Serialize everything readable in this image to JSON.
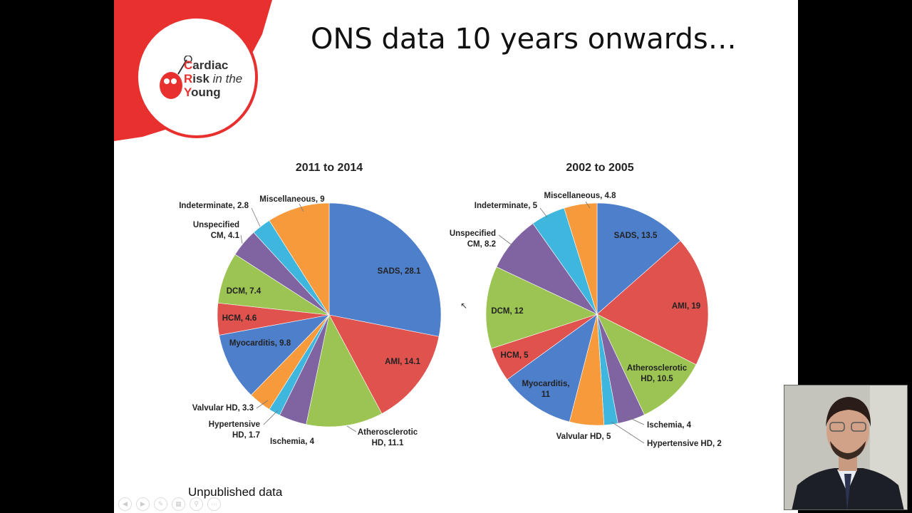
{
  "slide": {
    "title": "ONS data 10 years onwards…",
    "footnote": "Unpublished data",
    "logo": {
      "line1_cap": "C",
      "line1_rest": "ardiac",
      "line2_cap": "R",
      "line2_bold": "isk",
      "line2_it": " in the",
      "line3_cap": "Y",
      "line3_rest": "oung"
    }
  },
  "colors": {
    "blue": "#4e7fcb",
    "red": "#e0524d",
    "green": "#9bc452",
    "purple": "#8064a2",
    "cyan": "#3fb6dd",
    "orange": "#f79a3b",
    "logo_red": "#e8312f"
  },
  "toolbar": {
    "icons": [
      "prev-icon",
      "next-icon",
      "pen-icon",
      "slides-icon",
      "zoom-icon",
      "more-icon"
    ]
  },
  "chart_data": [
    {
      "type": "pie",
      "title": "2011 to 2014",
      "slices": [
        {
          "label": "SADS, 28.1",
          "value": 28.1,
          "color": "blue"
        },
        {
          "label": "AMI, 14.1",
          "value": 14.1,
          "color": "red"
        },
        {
          "label": "Atherosclerotic HD, 11.1",
          "value": 11.1,
          "color": "green"
        },
        {
          "label": "Ischemia, 4",
          "value": 4,
          "color": "purple"
        },
        {
          "label": "Hypertensive HD, 1.7",
          "value": 1.7,
          "color": "cyan"
        },
        {
          "label": "Valvular HD, 3.3",
          "value": 3.3,
          "color": "orange"
        },
        {
          "label": "Myocarditis, 9.8",
          "value": 9.8,
          "color": "blue"
        },
        {
          "label": "HCM, 4.6",
          "value": 4.6,
          "color": "red"
        },
        {
          "label": "DCM, 7.4",
          "value": 7.4,
          "color": "green"
        },
        {
          "label": "Unspecified CM, 4.1",
          "value": 4.1,
          "color": "purple"
        },
        {
          "label": "Indeterminate, 2.8",
          "value": 2.8,
          "color": "cyan"
        },
        {
          "label": "Miscellaneous, 9",
          "value": 9,
          "color": "orange"
        }
      ]
    },
    {
      "type": "pie",
      "title": "2002 to 2005",
      "slices": [
        {
          "label": "SADS, 13.5",
          "value": 13.5,
          "color": "blue"
        },
        {
          "label": "AMI, 19",
          "value": 19,
          "color": "red"
        },
        {
          "label": "Atherosclerotic HD, 10.5",
          "value": 10.5,
          "color": "green"
        },
        {
          "label": "Ischemia, 4",
          "value": 4,
          "color": "purple"
        },
        {
          "label": "Hypertensive HD, 2",
          "value": 2,
          "color": "cyan"
        },
        {
          "label": "Valvular HD, 5",
          "value": 5,
          "color": "orange"
        },
        {
          "label": "Myocarditis, 11",
          "value": 11,
          "color": "blue"
        },
        {
          "label": "HCM, 5",
          "value": 5,
          "color": "red"
        },
        {
          "label": "DCM, 12",
          "value": 12,
          "color": "green"
        },
        {
          "label": "Unspecified CM, 8.2",
          "value": 8.2,
          "color": "purple"
        },
        {
          "label": "Indeterminate, 5",
          "value": 5,
          "color": "cyan"
        },
        {
          "label": "Miscellaneous, 4.8",
          "value": 4.8,
          "color": "orange"
        }
      ]
    }
  ]
}
